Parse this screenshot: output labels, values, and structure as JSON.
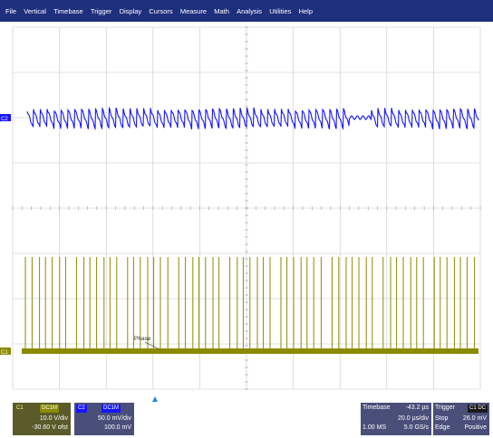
{
  "menu": [
    "File",
    "Vertical",
    "Timebase",
    "Trigger",
    "Display",
    "Cursors",
    "Measure",
    "Math",
    "Analysis",
    "Utilities",
    "Help"
  ],
  "channels": {
    "c1": {
      "tag": "C1",
      "badge": "DC1M",
      "scale": "10.0 V/div",
      "offset": "-30.60 V ofst",
      "color": "#8b8b00"
    },
    "c2": {
      "tag": "C2",
      "badge": "DC1M",
      "scale": "50.0 mV/div",
      "offset": "100.0 mV",
      "color": "#1515ff"
    }
  },
  "annotation": "Phase",
  "timebase": {
    "label": "Timebase",
    "delay": "-43.2 µs",
    "per_div": "20.0 µs/div",
    "samples": "1.00 MS",
    "rate": "5.0 GS/s"
  },
  "trigger": {
    "label": "Trigger",
    "badge": "C1 DC",
    "mode": "Stop",
    "level": "26.0 mV",
    "type": "Edge",
    "slope": "Positive"
  },
  "colors": {
    "menubar": "#1e2f7e",
    "panel": "#4a4f7a",
    "c1": "#8b8b00",
    "c2": "#1515ff",
    "grid": "#c8c8c8"
  }
}
